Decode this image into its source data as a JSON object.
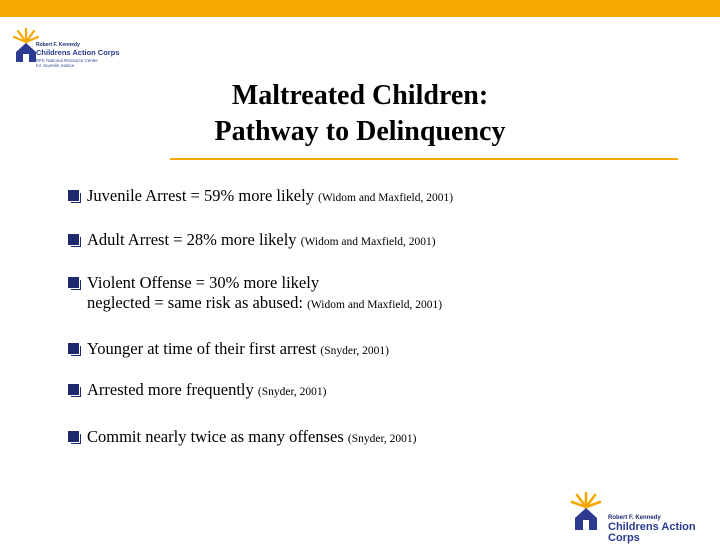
{
  "logo": {
    "line1": "Robert F. Kennedy",
    "line2": "Childrens Action Corps",
    "line3": "RFK National Resource Center",
    "line4": "for Juvenile Justice",
    "icon": "sunburst-house-icon"
  },
  "title": {
    "line1": "Maltreated Children:",
    "line2": "Pathway to Delinquency"
  },
  "bullets": [
    {
      "text": "Juvenile Arrest  =  59% more likely ",
      "cite": "(Widom and Maxfield, 2001)"
    },
    {
      "text": "Adult Arrest =  28% more likely ",
      "cite": "(Widom and Maxfield, 2001)"
    },
    {
      "text": "Violent Offense = 30% more likely",
      "text2": "neglected = same risk as abused: ",
      "cite": "(Widom and Maxfield, 2001)"
    },
    {
      "text": "Younger at time of their first arrest ",
      "cite": "(Snyder, 2001)"
    },
    {
      "text": "Arrested more frequently ",
      "cite": "(Snyder, 2001)"
    },
    {
      "text": "Commit nearly twice as many offenses ",
      "cite": "(Snyder, 2001)"
    }
  ],
  "footer_logo": {
    "line1": "Robert F. Kennedy",
    "line2": "Childrens Action Corps",
    "icon": "sunburst-house-icon"
  },
  "colors": {
    "accent": "#f5a900",
    "brand": "#2c3a92",
    "bullet": "#1f2a6e"
  }
}
